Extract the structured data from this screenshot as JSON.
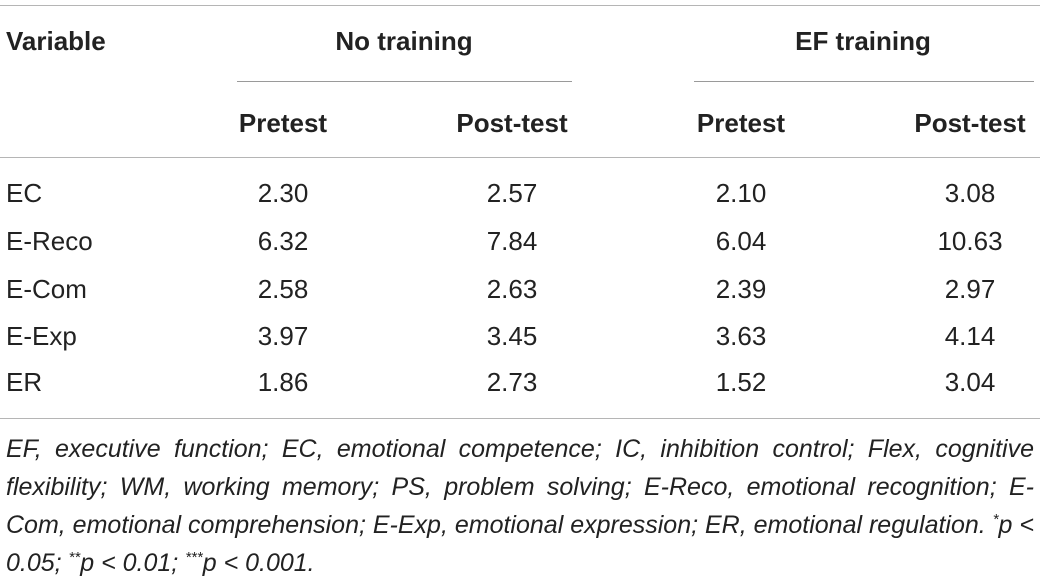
{
  "table": {
    "stub_header": "Variable",
    "groups": [
      "No training",
      "EF training"
    ],
    "subheaders": [
      "Pretest",
      "Post-test",
      "Pretest",
      "Post-test"
    ],
    "rows": [
      {
        "label": "EC",
        "values": [
          "2.30",
          "2.57",
          "2.10",
          "3.08"
        ]
      },
      {
        "label": "E-Reco",
        "values": [
          "6.32",
          "7.84",
          "6.04",
          "10.63"
        ]
      },
      {
        "label": "E-Com",
        "values": [
          "2.58",
          "2.63",
          "2.39",
          "2.97"
        ]
      },
      {
        "label": "E-Exp",
        "values": [
          "3.97",
          "3.45",
          "3.63",
          "4.14"
        ]
      },
      {
        "label": "ER",
        "values": [
          "1.86",
          "2.73",
          "1.52",
          "3.04"
        ]
      }
    ]
  },
  "footnote": {
    "text": "EF, executive function; EC, emotional competence; IC, inhibition control; Flex, cognitive flexibility; WM, working memory; PS, problem solving; E-Reco, emotional recognition; E-Com, emotional comprehension; E-Exp, emotional expression; ER, emotional regulation.",
    "sig1_mark": "*",
    "sig1_text": "p < 0.05;",
    "sig2_mark": "**",
    "sig2_text": "p < 0.01;",
    "sig3_mark": "***",
    "sig3_text": "p < 0.001."
  }
}
